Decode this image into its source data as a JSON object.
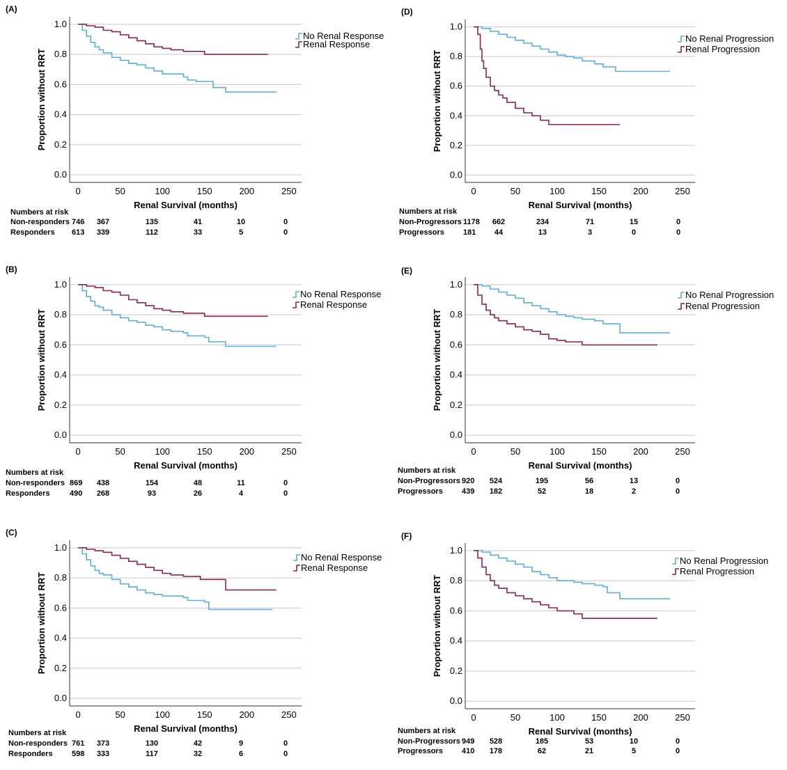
{
  "colors": {
    "blue": "#5aaee0",
    "red": "#8c2443",
    "grid": "#c8c8c8",
    "axis": "#333333"
  },
  "chart_data": [
    {
      "panel": "(A)",
      "type": "line",
      "xlabel": "Renal Survival (months)",
      "ylabel": "Proportion without RRT",
      "xlim": [
        -10,
        265
      ],
      "ylim": [
        -0.05,
        1.05
      ],
      "xticks": [
        "0",
        "50",
        "100",
        "150",
        "200",
        "250"
      ],
      "yticks": [
        "0.0",
        "0.2",
        "0.4",
        "0.6",
        "0.8",
        "1.0"
      ],
      "grid": "horizontal",
      "legend_position": "top-right",
      "series": [
        {
          "name": "No Renal Response",
          "color": "#5aaee0",
          "x": [
            0,
            5,
            10,
            15,
            20,
            25,
            30,
            40,
            50,
            60,
            70,
            80,
            90,
            100,
            110,
            125,
            130,
            140,
            150,
            160,
            165,
            175,
            200,
            215,
            235
          ],
          "y": [
            1.0,
            0.96,
            0.92,
            0.88,
            0.85,
            0.83,
            0.81,
            0.78,
            0.76,
            0.74,
            0.73,
            0.71,
            0.69,
            0.67,
            0.67,
            0.65,
            0.63,
            0.62,
            0.62,
            0.58,
            0.58,
            0.55,
            0.55,
            0.55,
            0.55
          ]
        },
        {
          "name": "Renal Response",
          "color": "#8c2443",
          "x": [
            0,
            10,
            20,
            30,
            40,
            50,
            60,
            70,
            80,
            90,
            100,
            110,
            125,
            150,
            160,
            200,
            225
          ],
          "y": [
            1.0,
            0.99,
            0.98,
            0.96,
            0.95,
            0.93,
            0.91,
            0.89,
            0.87,
            0.85,
            0.84,
            0.83,
            0.82,
            0.8,
            0.8,
            0.8,
            0.8
          ]
        }
      ],
      "risk_table": {
        "title": "Numbers at risk",
        "rows": [
          {
            "label": "Non-responders",
            "values": [
              "746",
              "367",
              "135",
              "41",
              "10",
              "0"
            ]
          },
          {
            "label": "Responders",
            "values": [
              "613",
              "339",
              "112",
              "33",
              "5",
              "0"
            ]
          }
        ]
      }
    },
    {
      "panel": "(B)",
      "type": "line",
      "xlabel": "Renal Survival (months)",
      "ylabel": "Proportion without RRT",
      "xlim": [
        -10,
        265
      ],
      "ylim": [
        -0.05,
        1.05
      ],
      "xticks": [
        "0",
        "50",
        "100",
        "150",
        "200",
        "250"
      ],
      "yticks": [
        "0.0",
        "0.2",
        "0.4",
        "0.6",
        "0.8",
        "1.0"
      ],
      "grid": "horizontal",
      "legend_position": "top-right",
      "series": [
        {
          "name": "No Renal Response",
          "color": "#5aaee0",
          "x": [
            0,
            5,
            10,
            15,
            20,
            25,
            30,
            40,
            50,
            60,
            70,
            80,
            90,
            100,
            110,
            125,
            130,
            150,
            155,
            175,
            200,
            235
          ],
          "y": [
            1.0,
            0.96,
            0.92,
            0.89,
            0.86,
            0.85,
            0.83,
            0.8,
            0.78,
            0.76,
            0.75,
            0.73,
            0.72,
            0.7,
            0.69,
            0.68,
            0.66,
            0.65,
            0.62,
            0.59,
            0.59,
            0.59
          ]
        },
        {
          "name": "Renal Response",
          "color": "#8c2443",
          "x": [
            0,
            10,
            20,
            30,
            40,
            50,
            60,
            70,
            80,
            90,
            100,
            110,
            125,
            150,
            200,
            225
          ],
          "y": [
            1.0,
            0.99,
            0.98,
            0.96,
            0.95,
            0.93,
            0.9,
            0.88,
            0.86,
            0.84,
            0.83,
            0.82,
            0.81,
            0.79,
            0.79,
            0.79
          ]
        }
      ],
      "risk_table": {
        "title": "Numbers at risk",
        "rows": [
          {
            "label": "Non-responders",
            "values": [
              "869",
              "438",
              "154",
              "48",
              "11",
              "0"
            ]
          },
          {
            "label": "Responders",
            "values": [
              "490",
              "268",
              "93",
              "26",
              "4",
              "0"
            ]
          }
        ]
      }
    },
    {
      "panel": "(C)",
      "type": "line",
      "xlabel": "Renal Survival (months)",
      "ylabel": "Proportion without RRT",
      "xlim": [
        -10,
        265
      ],
      "ylim": [
        -0.05,
        1.05
      ],
      "xticks": [
        "0",
        "50",
        "100",
        "150",
        "200",
        "250"
      ],
      "yticks": [
        "0.0",
        "0.2",
        "0.4",
        "0.6",
        "0.8",
        "1.0"
      ],
      "grid": "horizontal",
      "legend_position": "top-right",
      "series": [
        {
          "name": "No Renal Response",
          "color": "#5aaee0",
          "x": [
            0,
            5,
            10,
            15,
            20,
            25,
            30,
            40,
            50,
            60,
            70,
            80,
            90,
            100,
            110,
            125,
            130,
            150,
            155,
            200,
            230
          ],
          "y": [
            1.0,
            0.96,
            0.92,
            0.88,
            0.85,
            0.83,
            0.82,
            0.79,
            0.76,
            0.74,
            0.72,
            0.7,
            0.69,
            0.68,
            0.68,
            0.67,
            0.65,
            0.64,
            0.59,
            0.59,
            0.59
          ]
        },
        {
          "name": "Renal Response",
          "color": "#8c2443",
          "x": [
            0,
            10,
            20,
            30,
            40,
            50,
            60,
            70,
            80,
            90,
            100,
            110,
            125,
            145,
            175,
            200,
            235
          ],
          "y": [
            1.0,
            0.99,
            0.98,
            0.97,
            0.95,
            0.93,
            0.91,
            0.89,
            0.87,
            0.85,
            0.83,
            0.82,
            0.81,
            0.79,
            0.72,
            0.72,
            0.72
          ]
        }
      ],
      "risk_table": {
        "title": "Numbers at risk",
        "rows": [
          {
            "label": "Non-responders",
            "values": [
              "761",
              "373",
              "130",
              "42",
              "9",
              "0"
            ]
          },
          {
            "label": "Responders",
            "values": [
              "598",
              "333",
              "117",
              "32",
              "6",
              "0"
            ]
          }
        ]
      }
    },
    {
      "panel": "(D)",
      "type": "line",
      "xlabel": "Renal Survival (months)",
      "ylabel": "Proportion without RRT",
      "xlim": [
        -10,
        265
      ],
      "ylim": [
        -0.05,
        1.05
      ],
      "xticks": [
        "0",
        "50",
        "100",
        "150",
        "200",
        "250"
      ],
      "yticks": [
        "0.0",
        "0.2",
        "0.4",
        "0.6",
        "0.8",
        "1.0"
      ],
      "grid": "horizontal",
      "legend_position": "top-right",
      "series": [
        {
          "name": "No Renal Progression",
          "color": "#5aaee0",
          "x": [
            0,
            10,
            20,
            30,
            40,
            50,
            60,
            70,
            80,
            90,
            100,
            110,
            120,
            130,
            145,
            155,
            170,
            200,
            235
          ],
          "y": [
            1.0,
            0.99,
            0.97,
            0.95,
            0.93,
            0.91,
            0.89,
            0.87,
            0.85,
            0.83,
            0.81,
            0.8,
            0.79,
            0.77,
            0.75,
            0.73,
            0.7,
            0.7,
            0.7
          ]
        },
        {
          "name": "Renal Progression",
          "color": "#8c2443",
          "x": [
            0,
            5,
            8,
            10,
            12,
            15,
            20,
            25,
            30,
            35,
            40,
            50,
            60,
            70,
            80,
            90,
            100,
            130,
            175
          ],
          "y": [
            1.0,
            0.95,
            0.85,
            0.77,
            0.72,
            0.66,
            0.6,
            0.57,
            0.54,
            0.52,
            0.49,
            0.45,
            0.42,
            0.4,
            0.37,
            0.34,
            0.34,
            0.34,
            0.34
          ]
        }
      ],
      "risk_table": {
        "title": "Numbers at risk",
        "rows": [
          {
            "label": "Non-Progressors",
            "values": [
              "1178",
              "662",
              "234",
              "71",
              "15",
              "0"
            ]
          },
          {
            "label": "Progressors",
            "values": [
              "181",
              "44",
              "13",
              "3",
              "0",
              "0"
            ]
          }
        ]
      }
    },
    {
      "panel": "(E)",
      "type": "line",
      "xlabel": "Renal Survival (months)",
      "ylabel": "Proportion without RRT",
      "xlim": [
        -10,
        265
      ],
      "ylim": [
        -0.05,
        1.05
      ],
      "xticks": [
        "0",
        "50",
        "100",
        "150",
        "200",
        "250"
      ],
      "yticks": [
        "0.0",
        "0.2",
        "0.4",
        "0.6",
        "0.8",
        "1.0"
      ],
      "grid": "horizontal",
      "legend_position": "top-right",
      "series": [
        {
          "name": "No Renal Progression",
          "color": "#5aaee0",
          "x": [
            0,
            10,
            20,
            30,
            40,
            50,
            60,
            70,
            80,
            90,
            100,
            110,
            120,
            130,
            145,
            155,
            175,
            200,
            235
          ],
          "y": [
            1.0,
            0.99,
            0.97,
            0.95,
            0.93,
            0.91,
            0.88,
            0.86,
            0.84,
            0.82,
            0.8,
            0.79,
            0.78,
            0.77,
            0.76,
            0.74,
            0.68,
            0.68,
            0.68
          ]
        },
        {
          "name": "Renal Progression",
          "color": "#8c2443",
          "x": [
            0,
            5,
            10,
            15,
            20,
            25,
            30,
            40,
            50,
            60,
            70,
            80,
            90,
            100,
            110,
            130,
            160,
            220
          ],
          "y": [
            1.0,
            0.93,
            0.87,
            0.83,
            0.8,
            0.78,
            0.76,
            0.74,
            0.72,
            0.7,
            0.69,
            0.67,
            0.64,
            0.63,
            0.62,
            0.6,
            0.6,
            0.6
          ]
        }
      ],
      "risk_table": {
        "title": "Numbers at risk",
        "rows": [
          {
            "label": "Non-Progressors",
            "values": [
              "920",
              "524",
              "195",
              "56",
              "13",
              "0"
            ]
          },
          {
            "label": "Progressors",
            "values": [
              "439",
              "182",
              "52",
              "18",
              "2",
              "0"
            ]
          }
        ]
      }
    },
    {
      "panel": "(F)",
      "type": "line",
      "xlabel": "Renal Survival (months)",
      "ylabel": "Proportion without RRT",
      "xlim": [
        -10,
        265
      ],
      "ylim": [
        -0.05,
        1.05
      ],
      "xticks": [
        "0",
        "50",
        "100",
        "150",
        "200",
        "250"
      ],
      "yticks": [
        "0.0",
        "0.2",
        "0.4",
        "0.6",
        "0.8",
        "1.0"
      ],
      "grid": "horizontal",
      "legend_position": "top-right",
      "series": [
        {
          "name": "No Renal Progression",
          "color": "#5aaee0",
          "x": [
            0,
            10,
            20,
            30,
            40,
            50,
            60,
            70,
            80,
            90,
            100,
            110,
            120,
            130,
            145,
            155,
            160,
            175,
            200,
            235
          ],
          "y": [
            1.0,
            0.99,
            0.97,
            0.95,
            0.93,
            0.91,
            0.89,
            0.86,
            0.84,
            0.82,
            0.8,
            0.8,
            0.79,
            0.78,
            0.77,
            0.76,
            0.72,
            0.68,
            0.68,
            0.68
          ]
        },
        {
          "name": "Renal Progression",
          "color": "#8c2443",
          "x": [
            0,
            5,
            10,
            15,
            20,
            25,
            30,
            40,
            50,
            60,
            70,
            80,
            90,
            100,
            110,
            120,
            130,
            160,
            220
          ],
          "y": [
            1.0,
            0.95,
            0.89,
            0.84,
            0.8,
            0.77,
            0.75,
            0.72,
            0.7,
            0.68,
            0.66,
            0.64,
            0.62,
            0.6,
            0.6,
            0.58,
            0.55,
            0.55,
            0.55
          ]
        }
      ],
      "risk_table": {
        "title": "Numbers at risk",
        "rows": [
          {
            "label": "Non-Progressors",
            "values": [
              "949",
              "528",
              "185",
              "53",
              "10",
              "0"
            ]
          },
          {
            "label": "Progressors",
            "values": [
              "410",
              "178",
              "62",
              "21",
              "5",
              "0"
            ]
          }
        ]
      }
    }
  ]
}
